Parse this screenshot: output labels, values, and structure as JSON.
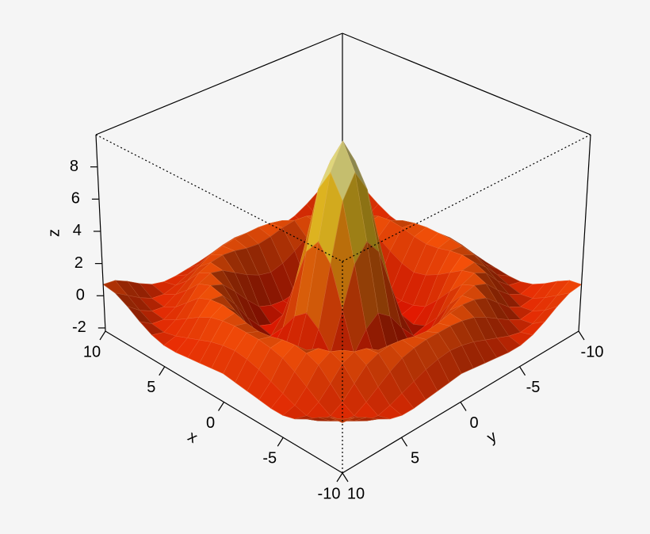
{
  "chart_data": {
    "type": "surface3d",
    "xlabel": "x",
    "ylabel": "y",
    "zlabel": "z",
    "x": [
      -10,
      -9,
      -8,
      -7,
      -6,
      -5,
      -4,
      -3,
      -2,
      -1,
      0,
      1,
      2,
      3,
      4,
      5,
      6,
      7,
      8,
      9,
      10
    ],
    "y": [
      -10,
      -9,
      -8,
      -7,
      -6,
      -5,
      -4,
      -3,
      -2,
      -1,
      0,
      1,
      2,
      3,
      4,
      5,
      6,
      7,
      8,
      9,
      10
    ],
    "z": [
      [
        0.7,
        0.6,
        0.2,
        -0.3,
        -0.7,
        -0.9,
        -0.9,
        -0.8,
        -0.7,
        -0.6,
        -0.5,
        -0.6,
        -0.7,
        -0.8,
        -0.9,
        -0.9,
        -0.7,
        -0.3,
        0.2,
        0.6,
        0.7
      ],
      [
        0.6,
        0.1,
        -0.4,
        -0.8,
        -0.9,
        -0.7,
        -0.4,
        -0.1,
        0.2,
        0.4,
        0.5,
        0.4,
        0.2,
        -0.1,
        -0.4,
        -0.7,
        -0.9,
        -0.8,
        -0.4,
        0.1,
        0.6
      ],
      [
        0.2,
        -0.4,
        -0.8,
        -0.9,
        -0.5,
        0,
        0.5,
        0.9,
        1.1,
        1.2,
        1.2,
        1.2,
        1.1,
        0.9,
        0.5,
        0,
        -0.5,
        -0.9,
        -0.8,
        -0.4,
        0.2
      ],
      [
        -0.3,
        -0.8,
        -0.9,
        -0.5,
        0.2,
        0.9,
        1.2,
        1.3,
        1.2,
        1.0,
        0.9,
        1.0,
        1.2,
        1.3,
        1.2,
        0.9,
        0.2,
        -0.5,
        -0.9,
        -0.8,
        -0.3
      ],
      [
        -0.7,
        -0.9,
        -0.5,
        0.2,
        1.0,
        1.3,
        1.1,
        0.6,
        0.1,
        -0.3,
        -0.5,
        -0.3,
        0.1,
        0.6,
        1.1,
        1.3,
        1.0,
        0.2,
        -0.5,
        -0.9,
        -0.7
      ],
      [
        -0.9,
        -0.7,
        0,
        0.9,
        1.3,
        1.0,
        0.2,
        -0.7,
        -1.5,
        -1.8,
        -1.9,
        -1.8,
        -1.5,
        -0.7,
        0.2,
        1.0,
        1.3,
        0.9,
        0,
        -0.7,
        -0.9
      ],
      [
        -0.9,
        -0.4,
        0.5,
        1.2,
        1.1,
        0.2,
        -1.0,
        -1.9,
        -2.2,
        -2.0,
        -1.9,
        -2.0,
        -2.2,
        -1.9,
        -1.0,
        0.2,
        1.1,
        1.2,
        0.5,
        -0.4,
        -0.9
      ],
      [
        -0.8,
        -0.1,
        0.9,
        1.3,
        0.6,
        -0.7,
        -1.9,
        -2.1,
        -1.2,
        -0.1,
        0.5,
        -0.1,
        -1.2,
        -2.1,
        -1.9,
        -0.7,
        0.6,
        1.3,
        0.9,
        -0.1,
        -0.8
      ],
      [
        -0.7,
        0.2,
        1.1,
        1.2,
        0.1,
        -1.5,
        -2.2,
        -1.2,
        1.1,
        3.5,
        4.5,
        3.5,
        1.1,
        -1.2,
        -2.2,
        -1.5,
        0.1,
        1.2,
        1.1,
        0.2,
        -0.7
      ],
      [
        -0.6,
        0.4,
        1.2,
        1.0,
        -0.3,
        -1.8,
        -2.0,
        -0.1,
        3.5,
        7.0,
        8.4,
        7.0,
        3.5,
        -0.1,
        -2.0,
        -1.8,
        -0.3,
        1.0,
        1.2,
        0.4,
        -0.6
      ],
      [
        -0.5,
        0.5,
        1.2,
        0.9,
        -0.5,
        -1.9,
        -1.9,
        0.5,
        4.5,
        8.4,
        10,
        8.4,
        4.5,
        0.5,
        -1.9,
        -1.9,
        -0.5,
        0.9,
        1.2,
        0.5,
        -0.5
      ],
      [
        -0.6,
        0.4,
        1.2,
        1.0,
        -0.3,
        -1.8,
        -2.0,
        -0.1,
        3.5,
        7.0,
        8.4,
        7.0,
        3.5,
        -0.1,
        -2.0,
        -1.8,
        -0.3,
        1.0,
        1.2,
        0.4,
        -0.6
      ],
      [
        -0.7,
        0.2,
        1.1,
        1.2,
        0.1,
        -1.5,
        -2.2,
        -1.2,
        1.1,
        3.5,
        4.5,
        3.5,
        1.1,
        -1.2,
        -2.2,
        -1.5,
        0.1,
        1.2,
        1.1,
        0.2,
        -0.7
      ],
      [
        -0.8,
        -0.1,
        0.9,
        1.3,
        0.6,
        -0.7,
        -1.9,
        -2.1,
        -1.2,
        -0.1,
        0.5,
        -0.1,
        -1.2,
        -2.1,
        -1.9,
        -0.7,
        0.6,
        1.3,
        0.9,
        -0.1,
        -0.8
      ],
      [
        -0.9,
        -0.4,
        0.5,
        1.2,
        1.1,
        0.2,
        -1.0,
        -1.9,
        -2.2,
        -2.0,
        -1.9,
        -2.0,
        -2.2,
        -1.9,
        -1.0,
        0.2,
        1.1,
        1.2,
        0.5,
        -0.4,
        -0.9
      ],
      [
        -0.9,
        -0.7,
        0,
        0.9,
        1.3,
        1.0,
        0.2,
        -0.7,
        -1.5,
        -1.8,
        -1.9,
        -1.8,
        -1.5,
        -0.7,
        0.2,
        1.0,
        1.3,
        0.9,
        0,
        -0.7,
        -0.9
      ],
      [
        -0.7,
        -0.9,
        -0.5,
        0.2,
        1.0,
        1.3,
        1.1,
        0.6,
        0.1,
        -0.3,
        -0.5,
        -0.3,
        0.1,
        0.6,
        1.1,
        1.3,
        1.0,
        0.2,
        -0.5,
        -0.9,
        -0.7
      ],
      [
        -0.3,
        -0.8,
        -0.9,
        -0.5,
        0.2,
        0.9,
        1.2,
        1.3,
        1.2,
        1.0,
        0.9,
        1.0,
        1.2,
        1.3,
        1.2,
        0.9,
        0.2,
        -0.5,
        -0.9,
        -0.8,
        -0.3
      ],
      [
        0.2,
        -0.4,
        -0.8,
        -0.9,
        -0.5,
        0,
        0.5,
        0.9,
        1.1,
        1.2,
        1.2,
        1.2,
        1.1,
        0.9,
        0.5,
        0,
        -0.5,
        -0.9,
        -0.8,
        -0.4,
        0.2
      ],
      [
        0.6,
        0.1,
        -0.4,
        -0.8,
        -0.9,
        -0.7,
        -0.4,
        -0.1,
        0.2,
        0.4,
        0.5,
        0.4,
        0.2,
        -0.1,
        -0.4,
        -0.7,
        -0.9,
        -0.8,
        -0.4,
        0.1,
        0.6
      ],
      [
        0.7,
        0.6,
        0.2,
        -0.3,
        -0.7,
        -0.9,
        -0.9,
        -0.8,
        -0.7,
        -0.6,
        -0.5,
        -0.6,
        -0.7,
        -0.8,
        -0.9,
        -0.9,
        -0.7,
        -0.3,
        0.2,
        0.6,
        0.7
      ]
    ],
    "xlim": [
      -10,
      10
    ],
    "ylim": [
      -10,
      10
    ],
    "zlim": [
      -2.2,
      10
    ],
    "xticks": [
      -10,
      -5,
      0,
      5,
      10
    ],
    "yticks": [
      -10,
      -5,
      0,
      5,
      10
    ],
    "zticks": [
      -2,
      0,
      2,
      4,
      6,
      8
    ],
    "colors": [
      "#e01400",
      "#f44a08",
      "#ff9a10",
      "#ffec30",
      "#fffff0"
    ],
    "mesh_color": "#ffc8a0"
  }
}
